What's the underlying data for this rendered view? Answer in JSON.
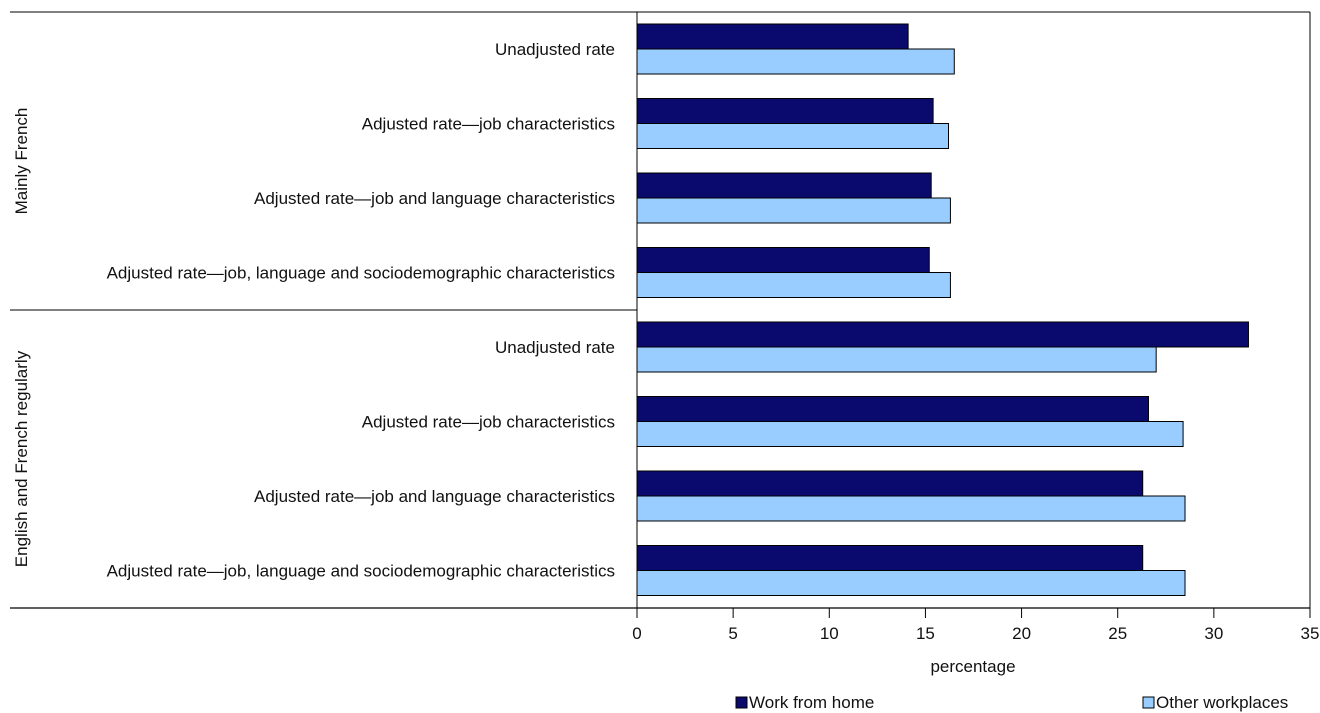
{
  "chart_data": {
    "type": "bar",
    "orientation": "horizontal",
    "groups": [
      {
        "name": "Mainly French",
        "categories": [
          "Unadjusted rate",
          "Adjusted rate—job characteristics",
          "Adjusted rate—job and language characteristics",
          "Adjusted rate—job, language and sociodemographic characteristics"
        ]
      },
      {
        "name": "English and French regularly",
        "categories": [
          "Unadjusted rate",
          "Adjusted rate—job characteristics",
          "Adjusted rate—job and language characteristics",
          "Adjusted rate—job, language and sociodemographic characteristics"
        ]
      }
    ],
    "series": [
      {
        "name": "Work from home",
        "color": "#0a0a6e",
        "values": [
          14.1,
          15.4,
          15.3,
          15.2,
          31.8,
          26.6,
          26.3,
          26.3
        ]
      },
      {
        "name": "Other workplaces",
        "color": "#99ccff",
        "values": [
          16.5,
          16.2,
          16.3,
          16.3,
          27.0,
          28.4,
          28.5,
          28.5
        ]
      }
    ],
    "xlabel": "percentage",
    "xlim": [
      0,
      35
    ],
    "xticks": [
      "0",
      "5",
      "10",
      "15",
      "20",
      "25",
      "30",
      "35"
    ],
    "grid": false,
    "legend_position": "bottom-right"
  }
}
